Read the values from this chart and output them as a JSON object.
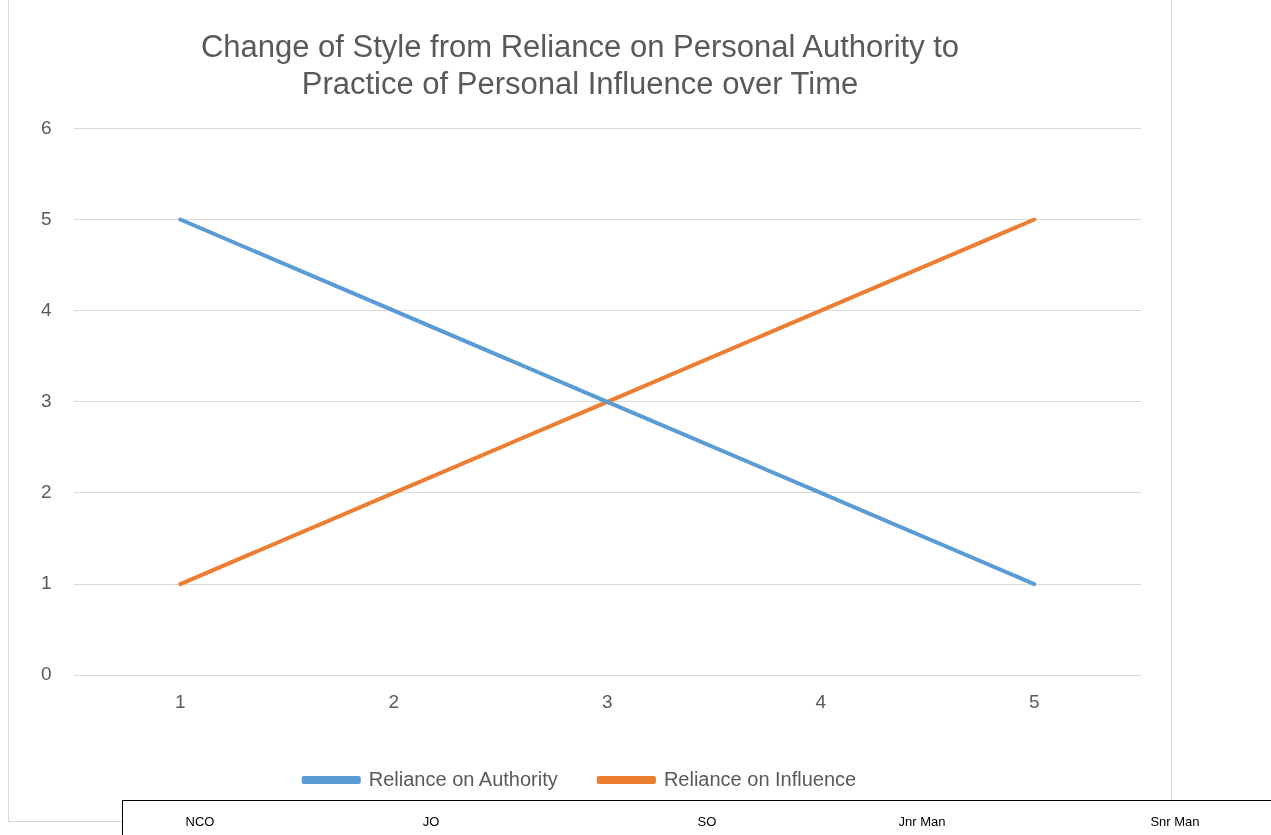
{
  "chart_data": {
    "type": "line",
    "title": "Change of Style from Reliance on Personal Authority to Practice of Personal Influence over Time",
    "categories": [
      "1",
      "2",
      "3",
      "4",
      "5"
    ],
    "series": [
      {
        "name": "Reliance on Authority",
        "color": "#5b9bd5",
        "values": [
          5,
          4,
          3,
          2,
          1
        ]
      },
      {
        "name": "Reliance on Influence",
        "color": "#ed7d31",
        "values": [
          1,
          2,
          3,
          4,
          5
        ]
      }
    ],
    "ylim": [
      0,
      6
    ],
    "yticks": [
      0,
      1,
      2,
      3,
      4,
      5,
      6
    ],
    "grid": "y",
    "legend": "bottom",
    "marker": "none",
    "line_style": "solid",
    "annotations": [
      "NCO",
      "JO",
      "SO",
      "Jnr Man",
      "Snr Man"
    ]
  }
}
